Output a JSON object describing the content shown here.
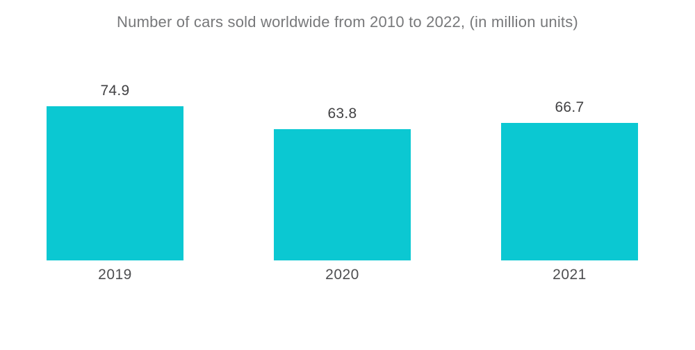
{
  "chart_data": {
    "type": "bar",
    "title": "Number of cars sold worldwide from 2010 to 2022, (in million units)",
    "categories": [
      "2019",
      "2020",
      "2021"
    ],
    "values": [
      74.9,
      63.8,
      66.7
    ],
    "value_labels": [
      "74.9",
      "63.8",
      "66.7"
    ],
    "xlabel": "",
    "ylabel": "",
    "ylim": [
      0,
      74.9
    ],
    "grid": false,
    "legend": false,
    "axes_visible": false,
    "bar_color": "#0bc8d2",
    "title_color": "#77787a",
    "value_label_color": "#414143",
    "category_label_color": "#4d4e50",
    "background_color": "#ffffff"
  }
}
